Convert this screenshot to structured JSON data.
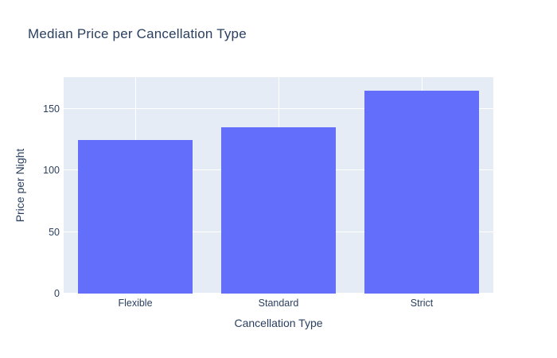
{
  "chart_data": {
    "type": "bar",
    "title": "Median Price per Cancellation Type",
    "categories": [
      "Flexible",
      "Standard",
      "Strict"
    ],
    "values": [
      125,
      135,
      165
    ],
    "xlabel": "Cancellation Type",
    "ylabel": "Price per Night",
    "yticks": [
      0,
      50,
      100,
      150
    ],
    "ylim": [
      0,
      176
    ],
    "grid": true,
    "legend": false,
    "colors": {
      "bar": "#636efa",
      "plot_bg": "#e5ecf6",
      "paper_bg": "#ffffff",
      "grid": "#ffffff",
      "text": "#2a3f5f"
    }
  }
}
